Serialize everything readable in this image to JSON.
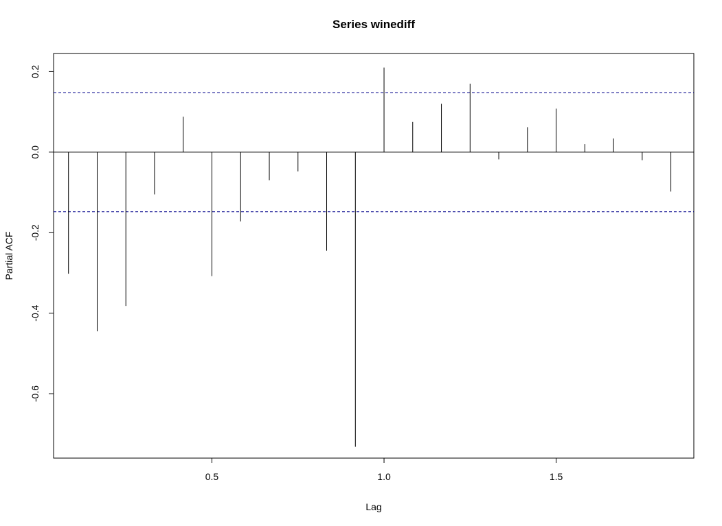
{
  "chart_data": {
    "type": "bar",
    "title": "Series  winediff",
    "xlabel": "Lag",
    "ylabel": "Partial ACF",
    "xlim": [
      0.04,
      1.9
    ],
    "ylim": [
      -0.76,
      0.245
    ],
    "x_ticks": [
      0.5,
      1.0,
      1.5
    ],
    "x_tick_labels": [
      "0.5",
      "1.0",
      "1.5"
    ],
    "y_ticks": [
      -0.6,
      -0.4,
      -0.2,
      0.0,
      0.2
    ],
    "y_tick_labels": [
      "-0.6",
      "-0.4",
      "-0.2",
      "0.0",
      "0.2"
    ],
    "confidence_limit": 0.148,
    "confidence_color": "#00008b",
    "bar_color": "#000000",
    "grid": false,
    "x": [
      0.0833,
      0.1667,
      0.25,
      0.3333,
      0.4167,
      0.5,
      0.5833,
      0.6667,
      0.75,
      0.8333,
      0.9167,
      1.0,
      1.0833,
      1.1667,
      1.25,
      1.3333,
      1.4167,
      1.5,
      1.5833,
      1.6667,
      1.75,
      1.8333
    ],
    "values": [
      -0.302,
      -0.445,
      -0.382,
      -0.105,
      0.088,
      -0.308,
      -0.172,
      -0.07,
      -0.048,
      -0.245,
      -0.732,
      0.21,
      0.075,
      0.12,
      0.17,
      -0.018,
      0.062,
      0.108,
      0.02,
      0.034,
      -0.02,
      -0.098
    ]
  }
}
